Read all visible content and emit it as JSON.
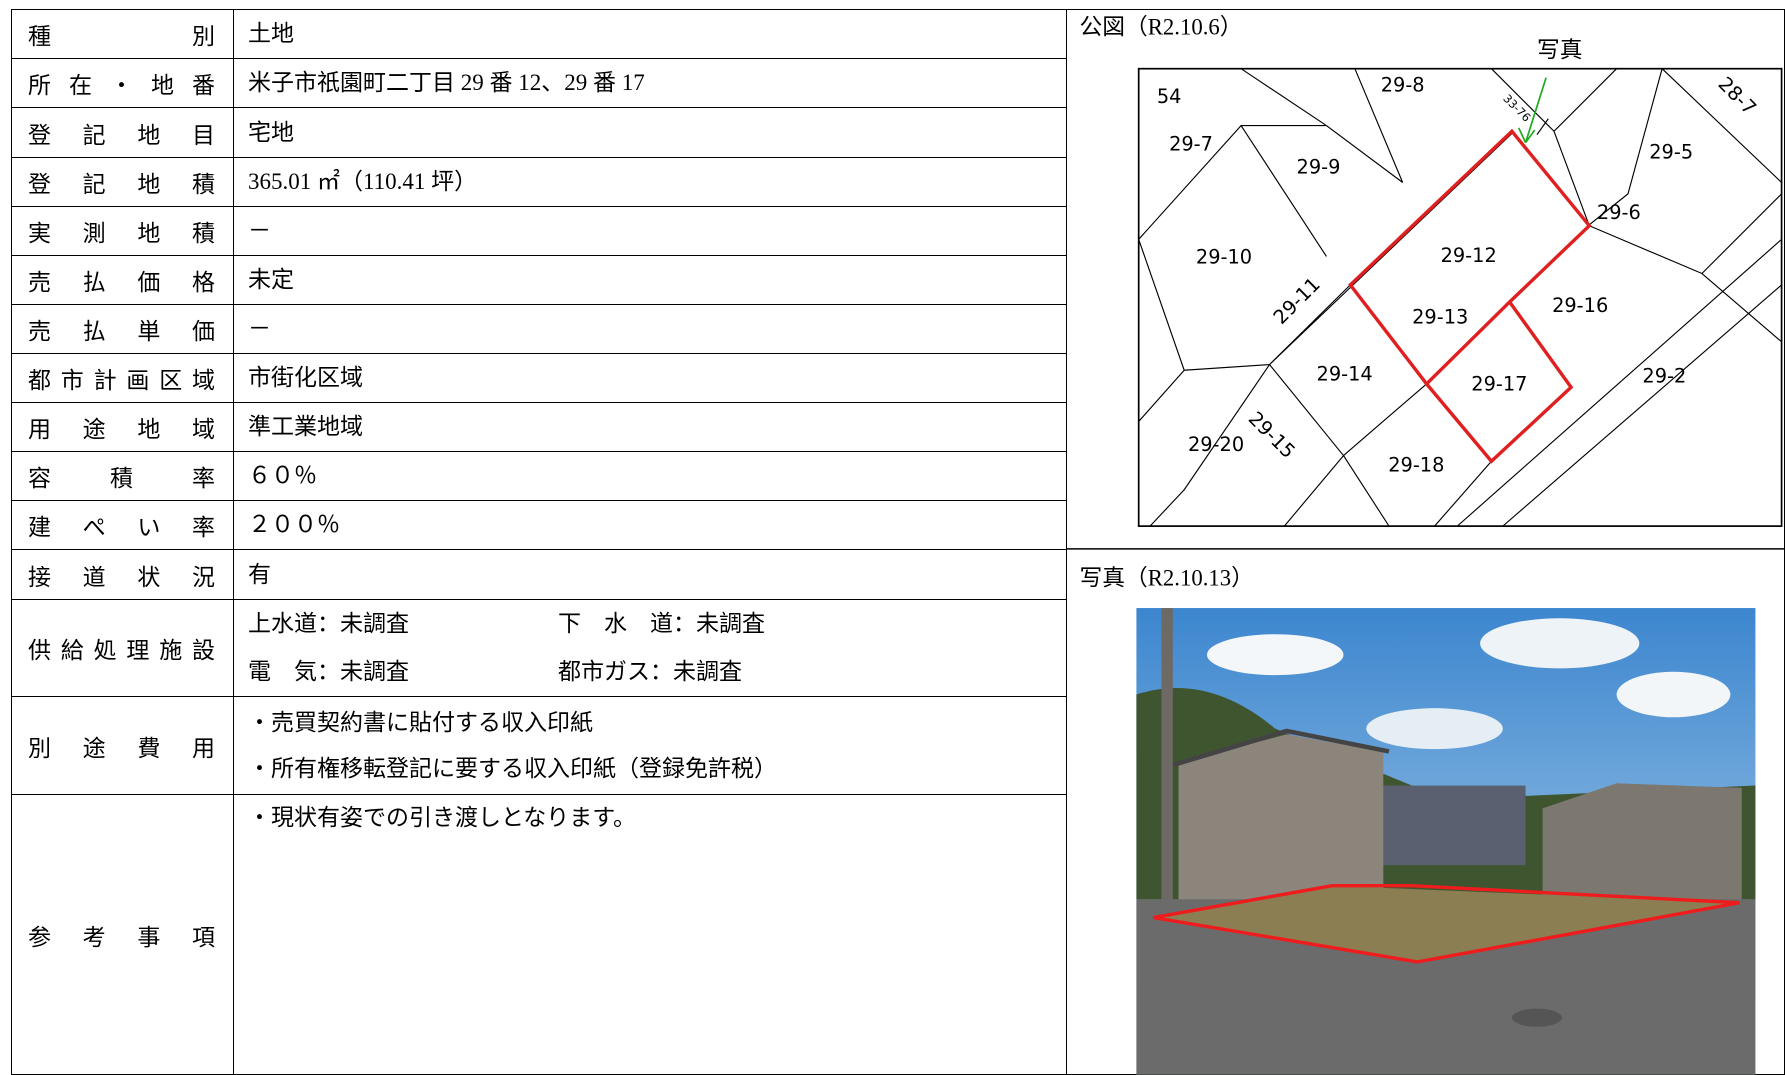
{
  "table": {
    "rows": [
      {
        "label": "種別",
        "lines": [
          "土地"
        ]
      },
      {
        "label": "所在・地番",
        "lines": [
          "米子市祇園町二丁目 29 番 12、29 番 17"
        ]
      },
      {
        "label": "登記地目",
        "lines": [
          "宅地"
        ]
      },
      {
        "label": "登記地積",
        "lines": [
          "365.01 ㎡（110.41 坪）"
        ]
      },
      {
        "label": "実測地積",
        "lines": [
          "－"
        ]
      },
      {
        "label": "売払価格",
        "lines": [
          "未定"
        ]
      },
      {
        "label": "売払単価",
        "lines": [
          "－"
        ]
      },
      {
        "label": "都市計画区域",
        "lines": [
          "市街化区域"
        ]
      },
      {
        "label": "用途地域",
        "lines": [
          "準工業地域"
        ]
      },
      {
        "label": "容積率",
        "lines": [
          "６０％"
        ]
      },
      {
        "label": "建ぺい率",
        "lines": [
          "２００％"
        ]
      },
      {
        "label": "接道状況",
        "lines": [
          "有"
        ]
      },
      {
        "label": "供給処理施設",
        "lines": [
          [
            "上水道：未調査",
            "下　水　道：未調査"
          ],
          [
            "電　気：未調査",
            "都市ガス：未調査"
          ]
        ]
      },
      {
        "label": "別途費用",
        "lines": [
          "・売買契約書に貼付する収入印紙",
          "・所有権移転登記に要する収入印紙（登録免許税）"
        ]
      },
      {
        "label": "参考事項",
        "lines": [
          "・現状有姿での引き渡しとなります。"
        ]
      }
    ]
  },
  "map": {
    "title": "公図（R2.10.6）",
    "photo_note": "写真",
    "parcels": [
      "54",
      "29-8",
      "33-76",
      "28-7",
      "29-7",
      "29-9",
      "29-5",
      "29-6",
      "29-10",
      "29-12",
      "29-11",
      "29-16",
      "29-13",
      "29-14",
      "29-17",
      "29-2",
      "29-15",
      "29-20",
      "29-18"
    ]
  },
  "photo": {
    "title": "写真（R2.10.13）"
  }
}
